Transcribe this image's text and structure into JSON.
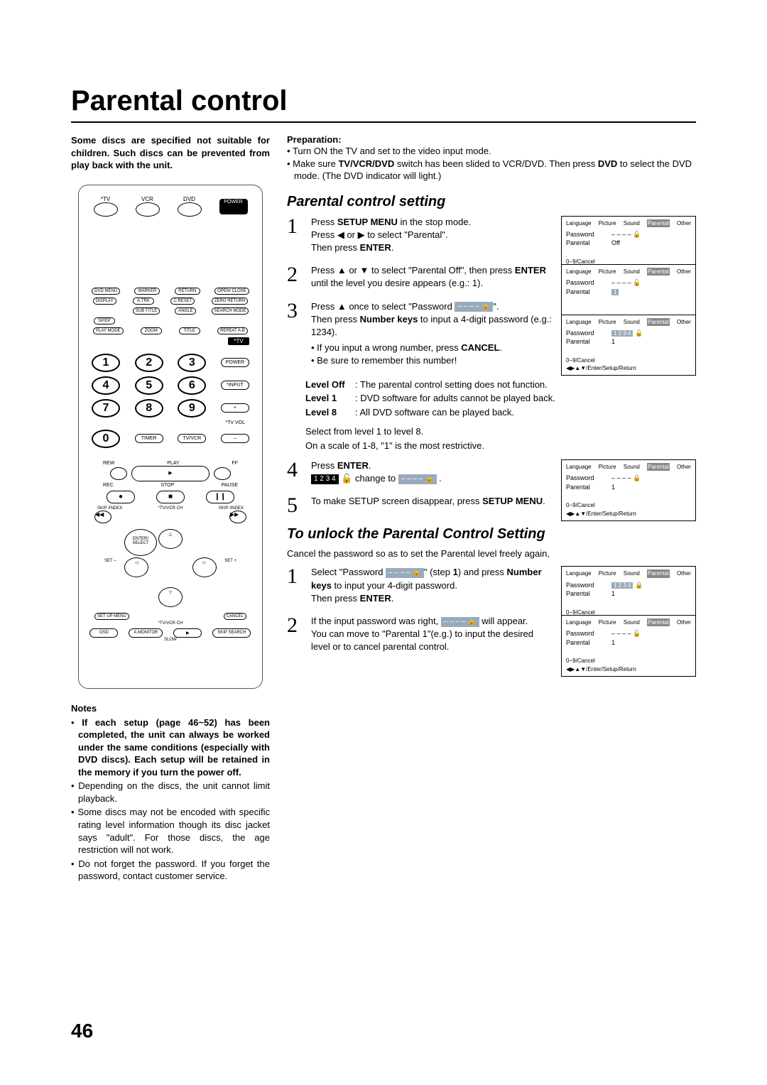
{
  "page": {
    "title": "Parental control",
    "number": "46"
  },
  "intro": "Some discs are specified not suitable for children. Such discs can be prevented from play back with the unit.",
  "remote": {
    "top": {
      "tv": "*TV",
      "vcr": "VCR",
      "dvd": "DVD",
      "power": "POWER"
    },
    "row1": [
      "DVD MENU",
      "MARKER",
      "RETURN",
      "OPEN/\nCLOSE"
    ],
    "row2": [
      "DISPLAY",
      "A.TRK",
      "C.RESET",
      "ZERO RETURN"
    ],
    "row3": [
      "",
      "SUB TITLE",
      "ANGLE",
      "SEARCH\nMODE"
    ],
    "row4": [
      "SP/EP",
      "",
      "",
      ""
    ],
    "row5": [
      "PLAY\nMODE",
      "ZOOM",
      "TITLE",
      "REPEAT\nA-B"
    ],
    "tvlabel": "*TV",
    "keypad": {
      "r1": [
        "1",
        "2",
        "3"
      ],
      "side1": "POWER",
      "r2": [
        "4",
        "5",
        "6"
      ],
      "side2": "*INPUT",
      "r3": [
        "7",
        "8",
        "9"
      ],
      "side3": "+",
      "r4": [
        "0"
      ],
      "side4a": "TIMER",
      "side4b": "TV/VCR",
      "tvvol": "*TV VOL",
      "minus": "–"
    },
    "transport": {
      "rew": "REW",
      "play": "PLAY",
      "ff": "FF",
      "rec": "REC",
      "stop": "STOP",
      "pause": "PAUSE"
    },
    "skip": {
      "l": "SKIP\n/INDEX",
      "r": "SKIP\n/INDEX",
      "ch": "*TV/VCR CH"
    },
    "nav": {
      "enter": "ENTER/\nSELECT",
      "setl": "SET\n–",
      "setr": "SET\n+",
      "setup": "SET UP\nMENU",
      "cancel": "CANCEL"
    },
    "bottom": {
      "osd": "OSD",
      "amon": "A.MONITOR",
      "slow": "SLOW",
      "ss": "SKIP\nSEARCH",
      "ch2": "*TV/VCR CH"
    }
  },
  "notes": {
    "header": "Notes",
    "items": [
      {
        "bold": true,
        "text": "If each setup (page 46~52) has been completed, the unit can always be worked under the same conditions (especially with DVD discs).\nEach setup will be retained in the memory if you turn the power off."
      },
      {
        "bold": false,
        "text": "Depending on the discs, the unit cannot limit playback."
      },
      {
        "bold": false,
        "text": "Some discs may not be encoded with specific rating level information though its disc jacket says \"adult\". For those discs, the age restriction will not work."
      },
      {
        "bold": false,
        "text": "Do not forget the password. If you forget the password, contact customer service."
      }
    ]
  },
  "prep": {
    "header": "Preparation:",
    "items": [
      "Turn ON the TV and set to the video input mode.",
      "Make sure <b>TV/VCR/DVD</b> switch has been slided to VCR/DVD.\nThen press <b>DVD</b> to select the DVD mode. (The DVD indicator will light.)"
    ]
  },
  "section1": {
    "heading": "Parental control setting",
    "step1": "Press <b>SETUP MENU</b> in the stop mode.\nPress ◀ or ▶ to select \"Parental\".\nThen press <b>ENTER</b>.",
    "step2": "Press ▲ or ▼ to select \"Parental Off\", then press <b>ENTER</b> until the level you desire appears (e.g.: 1).",
    "step3_a": "Press ▲ once to select \"Password ",
    "step3_b": "\".\nThen press <b>Number keys</b> to input a 4-digit password (e.g.: 1234).",
    "step3_bul1": "If you input a wrong number, press <b>CANCEL</b>.",
    "step3_bul2": "Be sure to remember this number!",
    "levels": [
      {
        "name": "Level Off",
        "desc": "The parental control setting does not function."
      },
      {
        "name": "Level 1",
        "desc": "DVD software for adults cannot be played back."
      },
      {
        "name": "Level 8",
        "desc": "All DVD software can be played back."
      }
    ],
    "levels_after1": "Select from level 1 to level 8.",
    "levels_after2": "On a scale of 1-8, \"1\" is the most restrictive.",
    "step4_a": "Press <b>ENTER</b>.",
    "step4_b": " change to ",
    "step4_box1": "1 2 3 4",
    "step4_box2": "– – – –",
    "step5": "To make SETUP screen disappear, press <b>SETUP MENU</b>."
  },
  "section2": {
    "heading": "To unlock the Parental Control Setting",
    "lead": "Cancel the password so as to set the Parental level freely again,",
    "step1": "Select \"Password <span class='inline-box'>– – – – 🔒</span>\" (step <b>1</b>) and press <b>Number keys</b> to input your 4-digit password.\nThen press <b>ENTER</b>.",
    "step2": "If the input password was right, <span class='inline-box'>– – – – 🔓</span> will appear.\nYou can move to \"Parental 1\"(e.g.) to input the desired level or to cancel parental control."
  },
  "osd": {
    "tabs": [
      "Language",
      "Picture",
      "Sound",
      "Parental",
      "Other"
    ],
    "password_lbl": "Password",
    "parental_lbl": "Parental",
    "dash": "– – – –",
    "off": "Off",
    "one": "1",
    "p1234": "1 2 3 4",
    "foot1": "0−9/Cancel",
    "foot2": "◀▶▲▼/Enter/Setup/Return"
  },
  "colors": {
    "valbox_bg": "#99aabb",
    "tab_sel_bg": "#888888"
  }
}
